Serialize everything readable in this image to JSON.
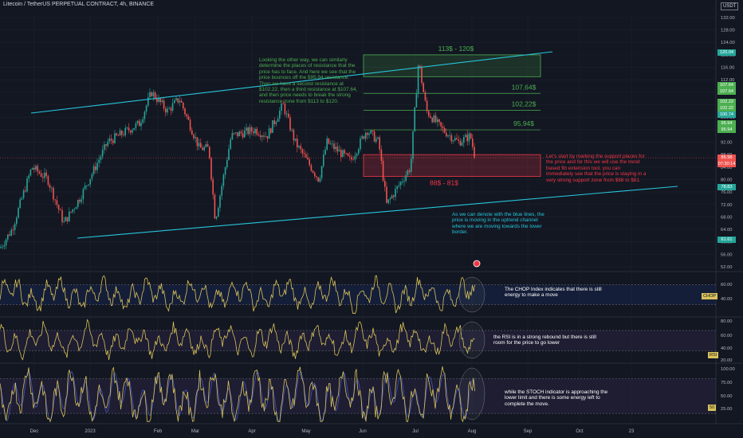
{
  "header": {
    "title": "Litecoin / TetherUS PERPETUAL CONTRACT, 4h, BINANCE",
    "currency": "USDT"
  },
  "chart_data": {
    "type": "candlestick",
    "price_axis": {
      "ticks": [
        132.0,
        128.0,
        124.0,
        120.0,
        116.0,
        112.0,
        108.0,
        104.0,
        100.0,
        96.0,
        92.0,
        88.0,
        84.0,
        80.0,
        76.0,
        72.0,
        68.0,
        64.0,
        60.0,
        56.0,
        52.0
      ],
      "range": [
        51.5,
        133
      ]
    },
    "time_axis": {
      "labels": [
        "Dec",
        "2023",
        "Feb",
        "Mar",
        "Apr",
        "May",
        "Jun",
        "Jul",
        "Aug",
        "Sep",
        "Oct",
        "23"
      ]
    },
    "price_tags": [
      {
        "value": "120.04",
        "color": "#26a69a"
      },
      {
        "value": "107.64",
        "color": "#4caf50"
      },
      {
        "value": "107.64",
        "color": "#4caf50"
      },
      {
        "value": "102.22",
        "color": "#4caf50"
      },
      {
        "value": "102.22",
        "color": "#4caf50"
      },
      {
        "value": "100.74",
        "color": "#26a69a"
      },
      {
        "value": "95.94",
        "color": "#4caf50"
      },
      {
        "value": "95.94",
        "color": "#4caf50"
      },
      {
        "value": "86.98",
        "color": "#ef5350"
      },
      {
        "value": "07:30:14",
        "color": "#ef5350"
      },
      {
        "value": "78.83",
        "color": "#26a69a"
      },
      {
        "value": "61.61",
        "color": "#26a69a"
      }
    ],
    "zones": [
      {
        "label": "113$ - 120$",
        "from": 113,
        "to": 120,
        "color": "#4caf50"
      },
      {
        "label": "88$ - 81$",
        "from": 81,
        "to": 88,
        "color": "#f23645"
      }
    ],
    "levels": [
      {
        "label": "107,64$",
        "value": 107.64
      },
      {
        "label": "102,22$",
        "value": 102.22
      },
      {
        "label": "95,94$",
        "value": 95.94
      }
    ],
    "channel": {
      "upper": [
        [
          39,
          142
        ],
        [
          693,
          65
        ]
      ],
      "lower": [
        [
          97,
          299
        ],
        [
          850,
          234
        ]
      ]
    },
    "indicators": [
      {
        "name": "CHOP",
        "ticks": [
          "60.00",
          "40.00"
        ],
        "tag": "CHOP",
        "bands": [
          60,
          40
        ],
        "range": [
          30,
          70
        ]
      },
      {
        "name": "RSI",
        "ticks": [
          "80.00",
          "60.00",
          "40.00",
          "20.00"
        ],
        "tag": "RSI",
        "bands": [
          70,
          30
        ],
        "range": [
          10,
          92
        ]
      },
      {
        "name": "STOCH",
        "ticks": [
          "100.00",
          "75.00",
          "50.00",
          "25.00"
        ],
        "tag": "50",
        "bands": [
          80,
          20
        ],
        "range": [
          5,
          103
        ]
      }
    ]
  },
  "notes": {
    "resistance": "Looking the other way, we can similarly determine the places of resistance that the price has to face. And here we see that the price bounces off the $95.94 resistance. Then we have a second resistance at $102.22, then a third resistance at $107.64, and then price needs to break the strong resistance zone from $113 to $120.",
    "support": "Let's start by marking the support places for the price and for this we will use the trend based fib extension tool, you can immediately see that the price is staying in a very strong support zone from $88 to $81.",
    "channel": "As we can denote with the blue lines, the price is moving in the uptrend channel where we are moving towards the lower border.",
    "chop": "The CHOP Index indicates that there is still energy to make a move",
    "rsi": "the RSI is in a strong rebound but there is still room for the price to go lower",
    "stoch": "while the STOCH indicator is approaching the lower limit and there is some energy left to complete the move."
  },
  "colors": {
    "background": "#131722",
    "up": "#26a69a",
    "down": "#ef5350",
    "channel": "#26c6da",
    "indicator": "#d8c25a",
    "stoch_d": "#3f51b5"
  }
}
